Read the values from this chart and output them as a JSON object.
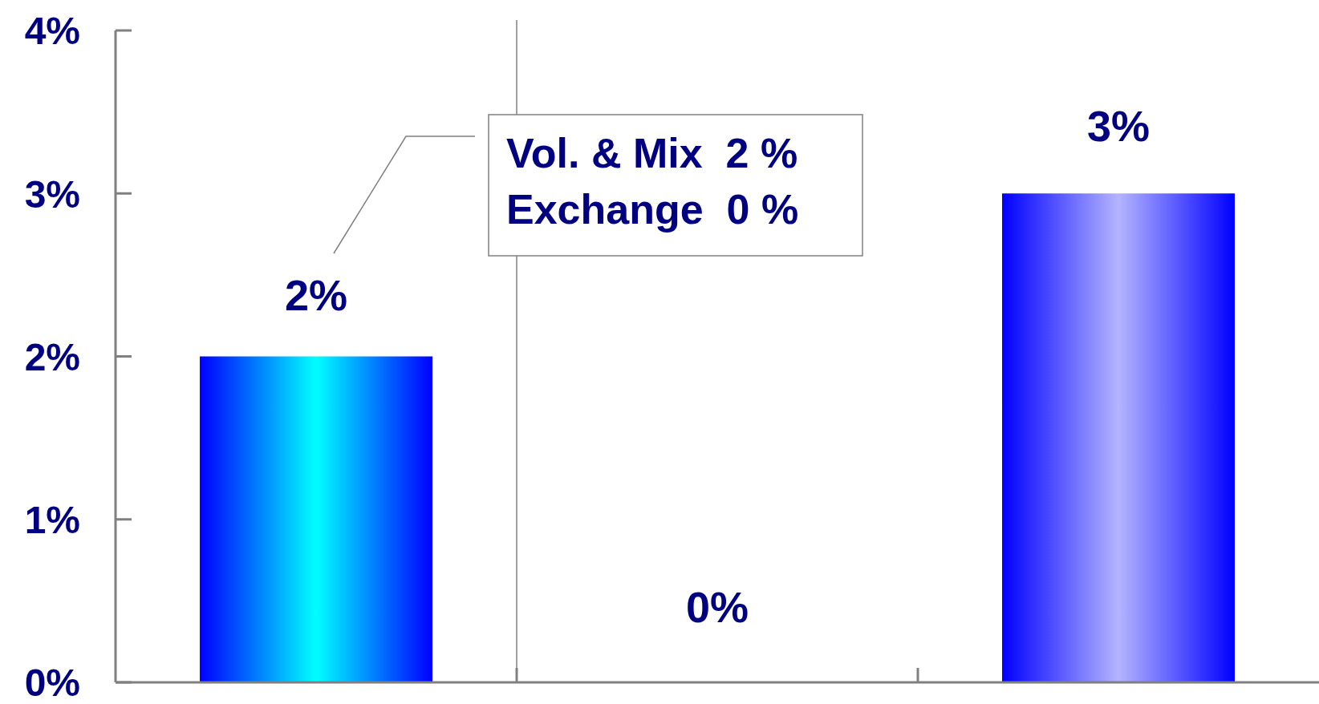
{
  "chart_data": {
    "type": "bar",
    "categories": [
      null,
      null,
      null
    ],
    "values": [
      2,
      0,
      3
    ],
    "colors": [
      "#00ffff",
      "#8080ff",
      "#b4b4ff"
    ],
    "value_labels": [
      "2%",
      "0%",
      "3%"
    ],
    "ylim": [
      0,
      4
    ],
    "yticks": [
      {
        "value": 0,
        "label": "0%"
      },
      {
        "value": 1,
        "label": "1%"
      },
      {
        "value": 2,
        "label": "2%"
      },
      {
        "value": 3,
        "label": "3%"
      },
      {
        "value": 4,
        "label": "4%"
      }
    ],
    "annotations": [
      "Vol. & Mix  2 %",
      "Exchange  0 %"
    ],
    "grid": false
  }
}
